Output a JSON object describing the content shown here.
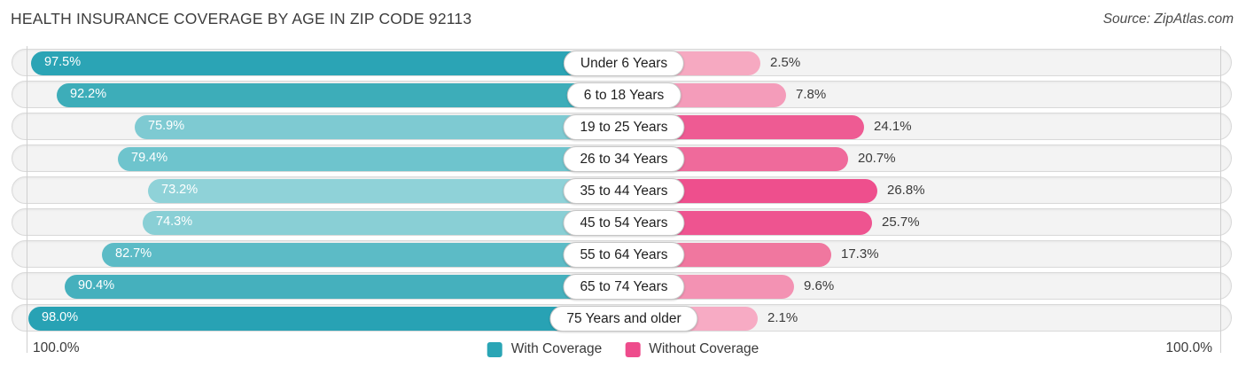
{
  "header": {
    "title": "HEALTH INSURANCE COVERAGE BY AGE IN ZIP CODE 92113",
    "source": "Source: ZipAtlas.com"
  },
  "chart_data": {
    "type": "bar",
    "variant": "diverging-horizontal-pyramid",
    "title": "HEALTH INSURANCE COVERAGE BY AGE IN ZIP CODE 92113",
    "categories": [
      "Under 6 Years",
      "6 to 18 Years",
      "19 to 25 Years",
      "26 to 34 Years",
      "35 to 44 Years",
      "45 to 54 Years",
      "55 to 64 Years",
      "65 to 74 Years",
      "75 Years and older"
    ],
    "series": [
      {
        "name": "With Coverage",
        "side": "left",
        "color": "#2aa5b5",
        "values": [
          97.5,
          92.2,
          75.9,
          79.4,
          73.2,
          74.3,
          82.7,
          90.4,
          98.0
        ],
        "value_labels": [
          "97.5%",
          "92.2%",
          "75.9%",
          "79.4%",
          "73.2%",
          "74.3%",
          "82.7%",
          "90.4%",
          "98.0%"
        ],
        "bar_colors": [
          "#2ba4b5",
          "#3dadb9",
          "#7ecad2",
          "#6ec4cd",
          "#8fd2d8",
          "#89cfd5",
          "#5cbbc6",
          "#45b0bd",
          "#28a2b4"
        ]
      },
      {
        "name": "Without Coverage",
        "side": "right",
        "color": "#ee4c8c",
        "values": [
          2.5,
          7.8,
          24.1,
          20.7,
          26.8,
          25.7,
          17.3,
          9.6,
          2.1
        ],
        "value_labels": [
          "2.5%",
          "7.8%",
          "24.1%",
          "20.7%",
          "26.8%",
          "25.7%",
          "17.3%",
          "9.6%",
          "2.1%"
        ],
        "bar_colors": [
          "#f6a9c1",
          "#f49cba",
          "#ee5b93",
          "#ef6a9b",
          "#ee4f8d",
          "#ee5490",
          "#f0779f",
          "#f392b3",
          "#f7abc4"
        ]
      }
    ],
    "x_axis": {
      "left_end_label": "100.0%",
      "right_end_label": "100.0%",
      "max_each_side": 100,
      "gridlines_at": [
        "left 100%",
        "right 100%"
      ]
    },
    "legend_position": "bottom-center"
  }
}
